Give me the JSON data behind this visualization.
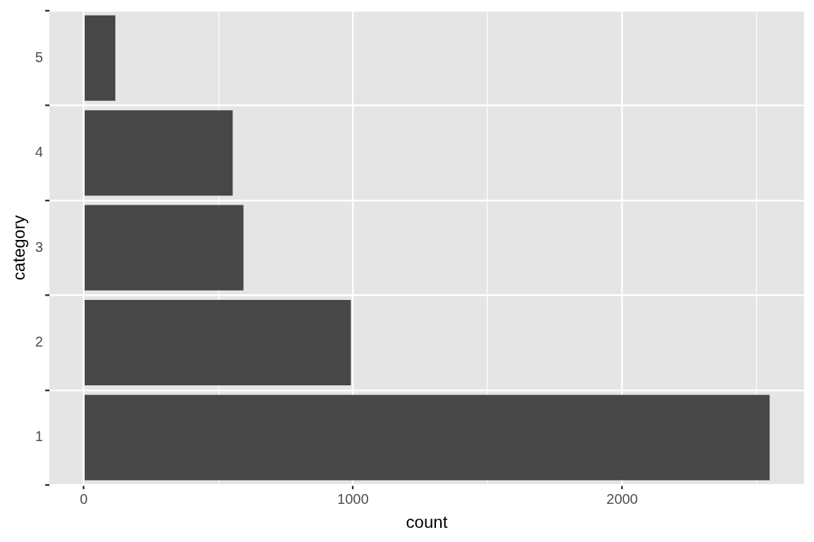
{
  "chart_data": {
    "type": "bar",
    "orientation": "horizontal",
    "xlabel": "count",
    "ylabel": "category",
    "categories": [
      "5",
      "4",
      "3",
      "2",
      "1"
    ],
    "values": [
      117,
      553,
      593,
      992,
      2548
    ],
    "color": "#474747",
    "xlim": [
      -128,
      2676
    ],
    "xticks": [
      0,
      {
        "value": 500,
        "label": null
      },
      1000,
      {
        "value": 1500,
        "label": null
      },
      2000,
      {
        "value": 2500,
        "label": null
      }
    ],
    "grid": true,
    "legend": false
  }
}
